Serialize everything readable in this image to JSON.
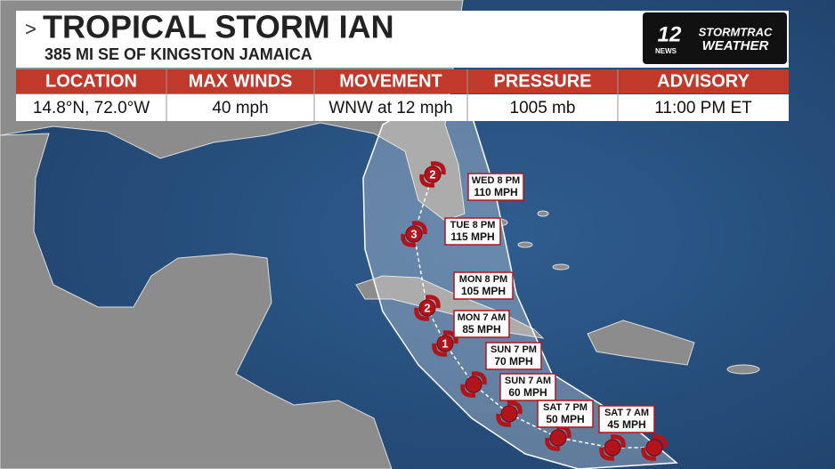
{
  "header": {
    "title": "TROPICAL STORM IAN",
    "subtitle": "385 MI SE OF KINGSTON JAMAICA"
  },
  "logo": {
    "number": "12",
    "news": "NEWS",
    "brand": "STORMTRAC",
    "product": "WEATHER"
  },
  "table": {
    "headers": [
      "LOCATION",
      "MAX WINDS",
      "MOVEMENT",
      "PRESSURE",
      "ADVISORY"
    ],
    "values": [
      "14.8°N, 72.0°W",
      "40 mph",
      "WNW at 12 mph",
      "1005 mb",
      "11:00 PM ET"
    ]
  },
  "forecast": [
    {
      "time": "WED 8 PM",
      "wind": "110 MPH",
      "category": "2"
    },
    {
      "time": "TUE 8 PM",
      "wind": "115 MPH",
      "category": "3"
    },
    {
      "time": "MON 8 PM",
      "wind": "105 MPH",
      "category": "2"
    },
    {
      "time": "MON 7 AM",
      "wind": "85 MPH",
      "category": "1"
    },
    {
      "time": "SUN 7 PM",
      "wind": "70 MPH"
    },
    {
      "time": "SUN 7 AM",
      "wind": "60 MPH"
    },
    {
      "time": "SAT 7 PM",
      "wind": "50 MPH"
    },
    {
      "time": "SAT 7 AM",
      "wind": "45 MPH"
    }
  ]
}
